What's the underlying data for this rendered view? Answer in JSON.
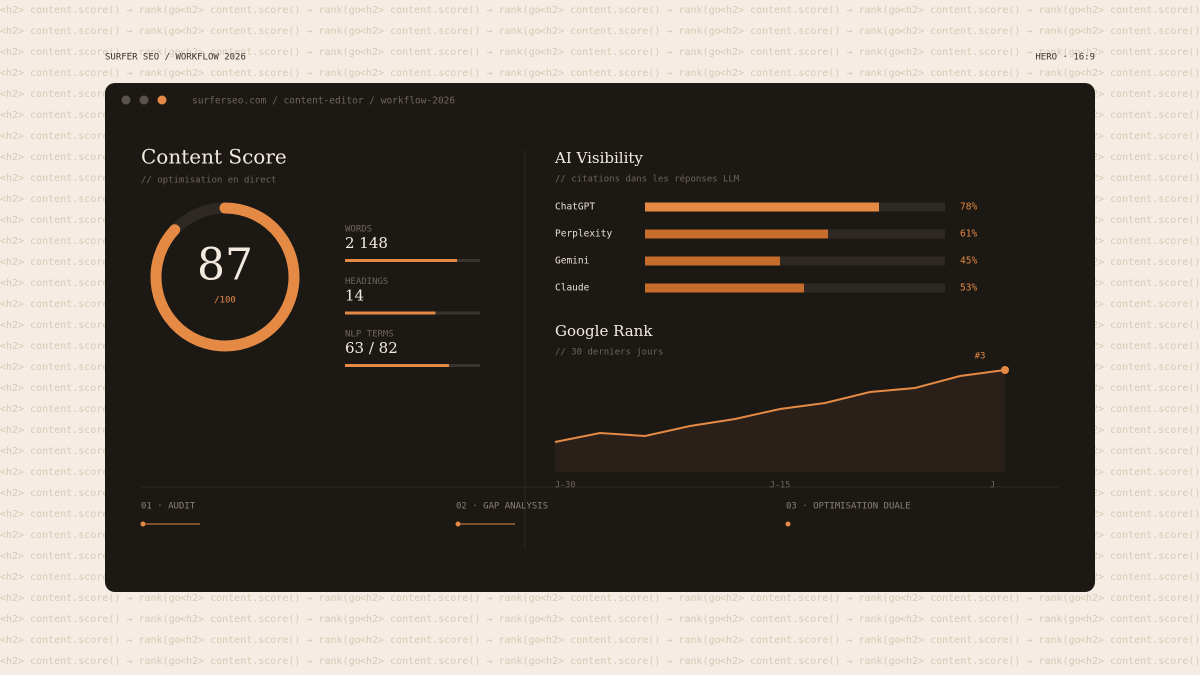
{
  "background_pattern": "<h2> content.score() → rank(go",
  "header": {
    "left": "SURFER SEO / WORKFLOW 2026",
    "right": "HERO · 16:9"
  },
  "window": {
    "url": "surferseo.com / content-editor / workflow-2026"
  },
  "content_score": {
    "title": "Content Score",
    "subtitle": "// optimisation en direct",
    "score": 87,
    "max": {
      "value": 100,
      "label": "/100"
    },
    "progress_lim": [
      0,
      100
    ],
    "metrics": [
      {
        "label": "WORDS",
        "value": "2 148",
        "progress": 83
      },
      {
        "label": "HEADINGS",
        "value": "14",
        "progress": 67
      },
      {
        "label": "NLP TERMS",
        "value": "63 / 82",
        "progress": 77
      }
    ]
  },
  "chart_data": [
    {
      "type": "bar",
      "orientation": "horizontal",
      "title": "AI Visibility",
      "subtitle": "// citations dans les réponses LLM",
      "categories": [
        "ChatGPT",
        "Perplexity",
        "Gemini",
        "Claude"
      ],
      "values": [
        78,
        61,
        45,
        53
      ],
      "value_labels": [
        "78%",
        "61%",
        "45%",
        "53%"
      ],
      "colors": [
        "#e58a45",
        "#c76d2c",
        "#c76d2c",
        "#c76d2c"
      ],
      "track_color": "#2e2925",
      "xlim": [
        0,
        100
      ]
    },
    {
      "type": "line",
      "title": "Google Rank",
      "subtitle": "// 30 derniers jours",
      "categories": [
        "J-30",
        null,
        null,
        null,
        null,
        "J-15",
        null,
        null,
        null,
        null,
        "J"
      ],
      "values": [
        30,
        39,
        36,
        46,
        53,
        63,
        69,
        80,
        84,
        96,
        102
      ],
      "ylim": [
        0,
        120
      ],
      "color": "#e58a45",
      "annotation": "#3"
    }
  ],
  "steps": [
    "01 · AUDIT",
    "02 · GAP ANALYSIS",
    "03 · OPTIMISATION DUALE"
  ]
}
